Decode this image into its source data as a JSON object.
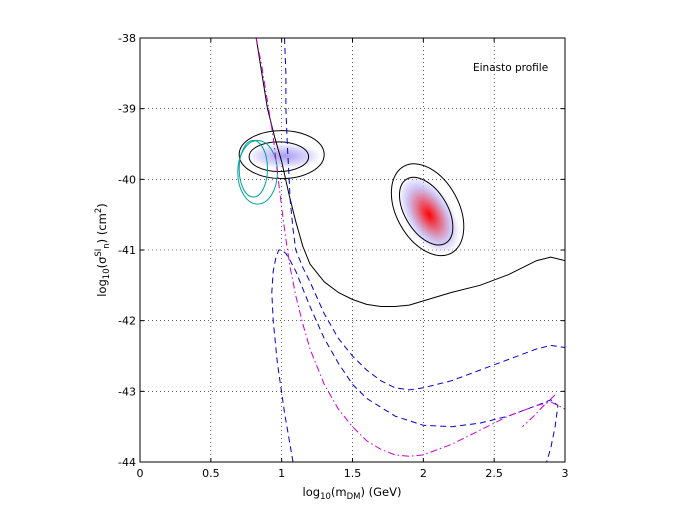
{
  "chart_data": {
    "type": "line",
    "title": "",
    "annotation": "Einasto profile",
    "xlabel": {
      "base": "log",
      "sub": "10",
      "mid": "(m",
      "sub2": "DM",
      "tail": ") (GeV)"
    },
    "ylabel": {
      "base": "log",
      "sub": "10",
      "mid": "(σ",
      "sup": "SI",
      "sub2": "n",
      "mid2": ") (cm",
      "sup2": "2",
      "tail": ")"
    },
    "xlim": [
      0,
      3
    ],
    "ylim": [
      -44,
      -38
    ],
    "x_ticks": [
      0,
      0.5,
      1,
      1.5,
      2,
      2.5,
      3
    ],
    "x_tick_labels": [
      "0",
      "0.5",
      "1",
      "1.5",
      "2",
      "2.5",
      "3"
    ],
    "y_ticks": [
      -44,
      -43,
      -42,
      -41,
      -40,
      -39,
      -38
    ],
    "y_tick_labels": [
      "-44",
      "-43",
      "-42",
      "-41",
      "-40",
      "-39",
      "-38"
    ],
    "grid": true,
    "colors": {
      "black": "#000000",
      "blue": "#0000cc",
      "magenta": "#cc00cc",
      "cyan": "#00a0a0",
      "red": "#ff0000",
      "lavender": "#b8b0f0"
    },
    "series": [
      {
        "style": "solid",
        "color": "#000000",
        "x": [
          0.82,
          0.86,
          0.9,
          0.95,
          1.0,
          1.05,
          1.1,
          1.15,
          1.2,
          1.3,
          1.4,
          1.5,
          1.6,
          1.7,
          1.8,
          1.9,
          2.0,
          2.2,
          2.4,
          2.6,
          2.8,
          2.9,
          3.0
        ],
        "y": [
          -38.0,
          -38.5,
          -39.0,
          -39.4,
          -39.75,
          -40.2,
          -40.6,
          -40.95,
          -41.2,
          -41.45,
          -41.6,
          -41.7,
          -41.77,
          -41.8,
          -41.8,
          -41.78,
          -41.72,
          -41.6,
          -41.5,
          -41.35,
          -41.15,
          -41.1,
          -41.15
        ]
      },
      {
        "style": "dashed",
        "color": "#0000cc",
        "x": [
          1.02,
          1.03,
          1.03,
          1.04,
          1.05,
          1.06,
          1.08,
          1.1,
          1.15,
          1.2,
          1.3,
          1.4,
          1.5,
          1.6,
          1.7,
          1.8,
          1.9,
          2.0,
          2.2,
          2.4,
          2.6,
          2.8,
          2.9,
          3.0
        ],
        "y": [
          -38.0,
          -38.5,
          -39.0,
          -39.5,
          -39.9,
          -40.3,
          -40.7,
          -41.0,
          -41.25,
          -41.45,
          -41.9,
          -42.25,
          -42.5,
          -42.7,
          -42.85,
          -42.95,
          -42.98,
          -42.95,
          -42.85,
          -42.7,
          -42.55,
          -42.4,
          -42.35,
          -42.38
        ]
      },
      {
        "style": "dashed",
        "color": "#0000cc",
        "x": [
          1.08,
          1.02,
          0.97,
          0.94,
          0.93,
          0.94,
          0.96,
          0.98,
          1.0,
          1.03,
          1.06,
          1.1,
          1.15,
          1.2,
          1.3,
          1.4,
          1.5,
          1.6,
          1.8,
          2.0,
          2.2,
          2.4,
          2.6,
          2.8,
          2.9,
          2.95,
          2.93,
          2.9,
          2.87
        ],
        "y": [
          -44.0,
          -43.3,
          -42.6,
          -42.0,
          -41.6,
          -41.3,
          -41.1,
          -41.0,
          -41.0,
          -41.05,
          -41.15,
          -41.3,
          -41.55,
          -41.8,
          -42.25,
          -42.6,
          -42.9,
          -43.1,
          -43.35,
          -43.48,
          -43.5,
          -43.45,
          -43.35,
          -43.2,
          -43.12,
          -43.2,
          -43.5,
          -43.8,
          -44.0
        ]
      },
      {
        "style": "dashdot",
        "color": "#cc00cc",
        "x": [
          0.82,
          0.86,
          0.9,
          0.94,
          0.97,
          1.0,
          1.03,
          1.06,
          1.1,
          1.15,
          1.2,
          1.3,
          1.4,
          1.5,
          1.6,
          1.7,
          1.8,
          1.9,
          2.0,
          2.2,
          2.4,
          2.6,
          2.8,
          2.9,
          3.0
        ],
        "y": [
          -38.0,
          -38.4,
          -38.9,
          -39.4,
          -39.9,
          -40.4,
          -40.85,
          -41.25,
          -41.65,
          -42.05,
          -42.4,
          -42.9,
          -43.25,
          -43.5,
          -43.7,
          -43.82,
          -43.9,
          -43.92,
          -43.9,
          -43.75,
          -43.55,
          -43.35,
          -43.2,
          -43.15,
          -43.25
        ]
      },
      {
        "style": "dashdot",
        "color": "#cc00cc",
        "x": [
          2.93,
          2.85,
          2.78,
          2.7
        ],
        "y": [
          -43.05,
          -43.2,
          -43.35,
          -43.5
        ]
      }
    ],
    "contours": [
      {
        "color": "#000000",
        "cx": 2.02,
        "cy": -40.45,
        "rx": 0.15,
        "ry": 0.53,
        "tilt": -0.55
      },
      {
        "color": "#000000",
        "cx": 2.03,
        "cy": -40.43,
        "rx": 0.22,
        "ry": 0.7,
        "tilt": -0.5
      },
      {
        "color": "#000000",
        "cx": 0.98,
        "cy": -39.68,
        "rx": 0.21,
        "ry": 0.21,
        "tilt": 0
      },
      {
        "color": "#000000",
        "cx": 1.0,
        "cy": -39.65,
        "rx": 0.3,
        "ry": 0.34,
        "tilt": 0
      },
      {
        "color": "#00a0a0",
        "cx": 0.8,
        "cy": -39.85,
        "rx": 0.1,
        "ry": 0.4,
        "tilt": 0
      },
      {
        "color": "#00a0a0",
        "cx": 0.83,
        "cy": -39.9,
        "rx": 0.14,
        "ry": 0.45,
        "tilt": 0
      }
    ],
    "fills": [
      {
        "kind": "gradient",
        "center_color": "#ff0000",
        "edge_color": "#c8c0f4",
        "cx": 2.04,
        "cy": -40.5,
        "rx": 0.17,
        "ry": 0.62,
        "tilt": -0.55
      },
      {
        "kind": "gradient",
        "center_color": "#a89cf0",
        "edge_color": "#dcd8fa",
        "cx": 1.02,
        "cy": -39.67,
        "rx": 0.26,
        "ry": 0.18,
        "tilt": 0
      }
    ]
  }
}
